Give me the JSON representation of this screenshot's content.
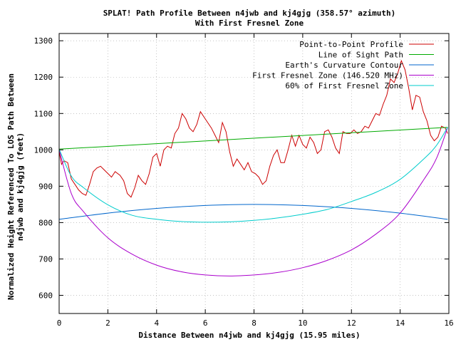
{
  "chart_data": {
    "type": "line",
    "title": "SPLAT! Path Profile Between n4jwb and kj4gjg (358.57° azimuth)",
    "subtitle": "With First Fresnel Zone",
    "xlabel": "Distance Between n4jwb and kj4gjg (15.95 miles)",
    "ylabel_line1": "Normalized Height Referenced To LOS Path Between",
    "ylabel_line2": "n4jwb and kj4gjg (feet)",
    "xlim": [
      0,
      16
    ],
    "ylim": [
      550,
      1320
    ],
    "x_ticks": [
      0,
      2,
      4,
      6,
      8,
      10,
      12,
      14,
      16
    ],
    "y_ticks": [
      600,
      700,
      800,
      900,
      1000,
      1100,
      1200,
      1300
    ],
    "grid": true,
    "legend_position": "top-right",
    "series": [
      {
        "name": "Point-to-Point Profile",
        "color": "#cc0000",
        "x": [
          0,
          0.1,
          0.2,
          0.35,
          0.5,
          0.65,
          0.8,
          0.95,
          1.1,
          1.25,
          1.4,
          1.55,
          1.7,
          1.85,
          2.0,
          2.15,
          2.3,
          2.5,
          2.65,
          2.8,
          2.95,
          3.1,
          3.25,
          3.4,
          3.55,
          3.7,
          3.85,
          4.0,
          4.15,
          4.3,
          4.45,
          4.6,
          4.75,
          4.9,
          5.05,
          5.2,
          5.35,
          5.5,
          5.65,
          5.8,
          5.95,
          6.1,
          6.25,
          6.4,
          6.55,
          6.7,
          6.85,
          7.0,
          7.15,
          7.3,
          7.45,
          7.6,
          7.75,
          7.9,
          8.05,
          8.2,
          8.35,
          8.5,
          8.65,
          8.8,
          8.95,
          9.1,
          9.25,
          9.4,
          9.55,
          9.7,
          9.85,
          10.0,
          10.15,
          10.3,
          10.45,
          10.6,
          10.75,
          10.9,
          11.05,
          11.2,
          11.35,
          11.5,
          11.65,
          11.8,
          11.95,
          12.1,
          12.25,
          12.4,
          12.55,
          12.7,
          12.85,
          13.0,
          13.15,
          13.3,
          13.45,
          13.6,
          13.75,
          13.9,
          14.05,
          14.2,
          14.35,
          14.5,
          14.65,
          14.8,
          14.95,
          15.1,
          15.25,
          15.4,
          15.55,
          15.7,
          15.85,
          15.95
        ],
        "y": [
          995,
          960,
          970,
          965,
          920,
          905,
          890,
          880,
          875,
          905,
          940,
          950,
          955,
          945,
          935,
          925,
          940,
          930,
          915,
          880,
          870,
          895,
          930,
          915,
          905,
          935,
          980,
          990,
          955,
          1000,
          1010,
          1005,
          1045,
          1060,
          1100,
          1085,
          1060,
          1050,
          1070,
          1105,
          1090,
          1075,
          1060,
          1040,
          1020,
          1075,
          1050,
          995,
          955,
          975,
          960,
          945,
          965,
          940,
          935,
          925,
          905,
          915,
          955,
          985,
          1000,
          965,
          965,
          1000,
          1040,
          1010,
          1040,
          1015,
          1005,
          1035,
          1020,
          990,
          1000,
          1050,
          1055,
          1035,
          1005,
          990,
          1050,
          1045,
          1045,
          1055,
          1045,
          1050,
          1065,
          1060,
          1080,
          1100,
          1095,
          1125,
          1150,
          1195,
          1185,
          1210,
          1245,
          1220,
          1170,
          1110,
          1150,
          1145,
          1105,
          1080,
          1040,
          1025,
          1035,
          1065,
          1060,
          1045
        ]
      },
      {
        "name": "Line of Sight Path",
        "color": "#00aa00",
        "x": [
          0,
          15.95
        ],
        "y": [
          1002,
          1062
        ]
      },
      {
        "name": "Earth's Curvature Contour",
        "color": "#0066cc",
        "x": [
          0,
          2,
          4,
          6,
          8,
          10,
          12,
          14,
          15.95
        ],
        "y": [
          809,
          826,
          839,
          847,
          850,
          847,
          839,
          826,
          809
        ]
      },
      {
        "name": "First Fresnel Zone (146.520 MHz)",
        "color": "#aa00cc",
        "x": [
          0,
          0.5,
          1,
          2,
          3,
          4,
          5,
          6,
          7,
          8,
          9,
          10,
          11,
          12,
          13,
          14,
          15,
          15.5,
          15.95
        ],
        "y": [
          1002,
          880,
          830,
          758,
          713,
          683,
          665,
          656,
          653,
          656,
          663,
          676,
          696,
          725,
          768,
          826,
          921,
          978,
          1062
        ]
      },
      {
        "name": "60% of First Fresnel Zone",
        "color": "#00cccc",
        "x": [
          0,
          0.5,
          1,
          2,
          3,
          4,
          5,
          6,
          7,
          8,
          9,
          10,
          11,
          12,
          13,
          14,
          15,
          15.5,
          15.95
        ],
        "y": [
          1002,
          928,
          896,
          849,
          820,
          809,
          803,
          801,
          802,
          806,
          813,
          823,
          836,
          858,
          883,
          919,
          977,
          1013,
          1062
        ]
      }
    ]
  }
}
